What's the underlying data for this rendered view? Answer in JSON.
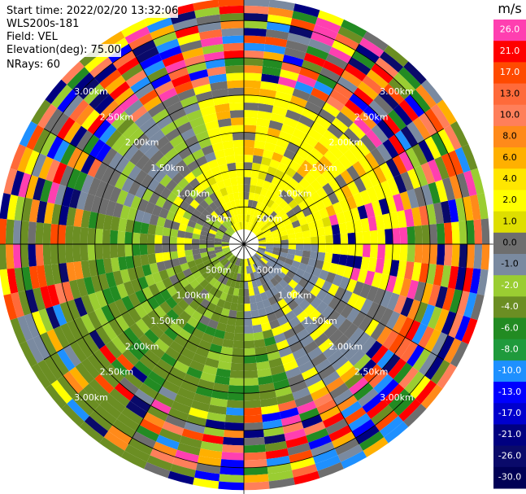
{
  "header": {
    "start_time": "Start time: 2022/02/20 13:32:06",
    "instrument": "WLS200s-181",
    "field": "Field: VEL",
    "elevation": "Elevation(deg): 75.00",
    "nrays": "NRays: 60"
  },
  "colorbar": {
    "unit": "m/s",
    "labels": [
      "26.0",
      "21.0",
      "17.0",
      "13.0",
      "10.0",
      "8.0",
      "6.0",
      "4.0",
      "2.0",
      "1.0",
      "0.0",
      "-1.0",
      "-2.0",
      "-4.0",
      "-6.0",
      "-8.0",
      "-10.0",
      "-13.0",
      "-17.0",
      "-21.0",
      "-26.0",
      "-30.0"
    ],
    "colors": [
      "#ff3fb0",
      "#ff0000",
      "#ff4a00",
      "#ff6a3a",
      "#ff7f5a",
      "#ff8a1a",
      "#ffb000",
      "#ffe600",
      "#ffff00",
      "#dede00",
      "#6e6e6e",
      "#7a8aa0",
      "#9acd32",
      "#6b8e23",
      "#228b22",
      "#1f9a3c",
      "#1e90ff",
      "#0000ff",
      "#0000cd",
      "#000080",
      "#0a0a6a",
      "#000055"
    ]
  },
  "range_rings": {
    "labels": [
      "500m",
      "1.00km",
      "1.50km",
      "2.00km",
      "2.50km",
      "3.00km"
    ]
  },
  "chart_data": {
    "type": "heatmap",
    "subtype": "ppi-polar",
    "nrays": 60,
    "range_km": [
      0,
      3.3
    ],
    "ring_values_km": [
      0.5,
      1.0,
      1.5,
      2.0,
      2.5,
      3.0
    ],
    "field": "VEL",
    "units": "m/s",
    "vrange": [
      -30,
      30
    ]
  }
}
